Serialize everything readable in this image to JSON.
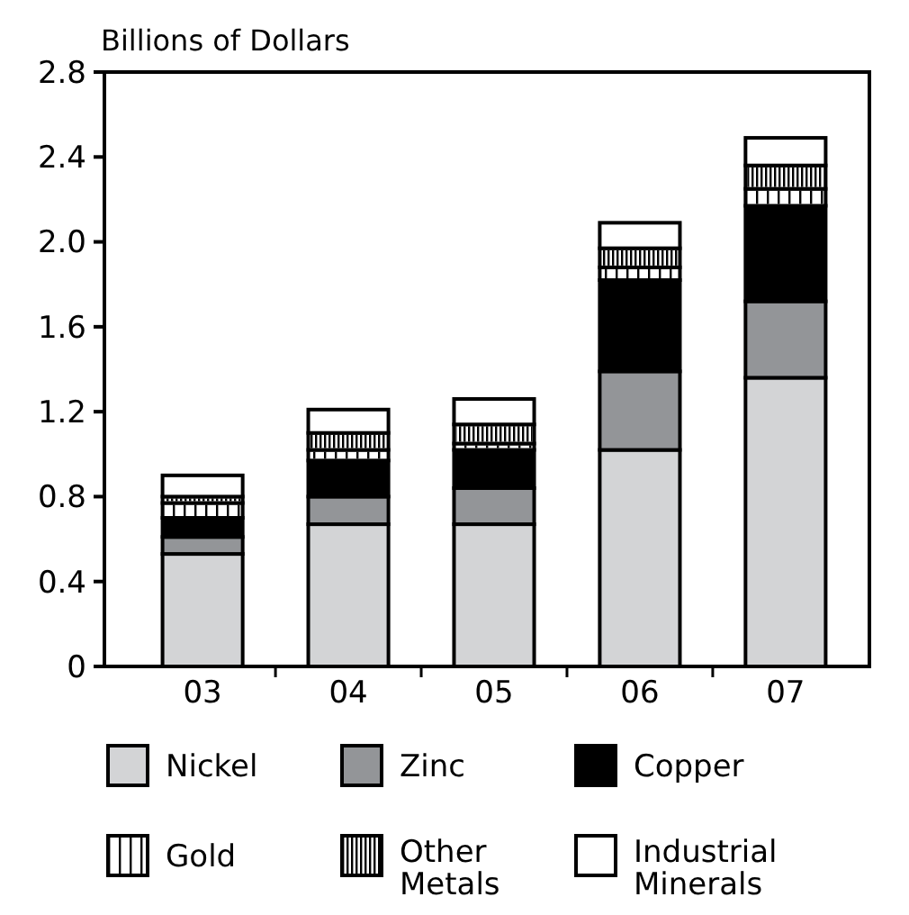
{
  "chart_data": {
    "type": "bar",
    "stacked": true,
    "ylabel": "Billions of Dollars",
    "categories": [
      "03",
      "04",
      "05",
      "06",
      "07"
    ],
    "ylim": [
      0,
      2.8
    ],
    "yticks": [
      {
        "value": 0,
        "label": "0"
      },
      {
        "value": 0.4,
        "label": "0.4"
      },
      {
        "value": 0.8,
        "label": "0.8"
      },
      {
        "value": 1.2,
        "label": "1.2"
      },
      {
        "value": 1.6,
        "label": "1.6"
      },
      {
        "value": 2.0,
        "label": "2.0"
      },
      {
        "value": 2.4,
        "label": "2.4"
      },
      {
        "value": 2.8,
        "label": "2.8"
      }
    ],
    "grid": false,
    "legend": "bottom",
    "series": [
      {
        "name": "Nickel",
        "color": "#d3d4d6",
        "values": [
          0.53,
          0.67,
          0.67,
          1.02,
          1.36
        ]
      },
      {
        "name": "Zinc",
        "color": "#939598",
        "values": [
          0.08,
          0.13,
          0.17,
          0.37,
          0.36
        ]
      },
      {
        "name": "Copper",
        "color": "#000000",
        "values": [
          0.09,
          0.17,
          0.18,
          0.43,
          0.45
        ]
      },
      {
        "name": "Gold",
        "color": "#ffffff",
        "values": [
          0.07,
          0.05,
          0.03,
          0.06,
          0.08
        ]
      },
      {
        "name": "Other Metals",
        "color": "#ffffff",
        "values": [
          0.03,
          0.08,
          0.09,
          0.09,
          0.11
        ]
      },
      {
        "name": "Industrial Minerals",
        "color": "#ffffff",
        "values": [
          0.1,
          0.11,
          0.12,
          0.12,
          0.13
        ]
      }
    ]
  }
}
